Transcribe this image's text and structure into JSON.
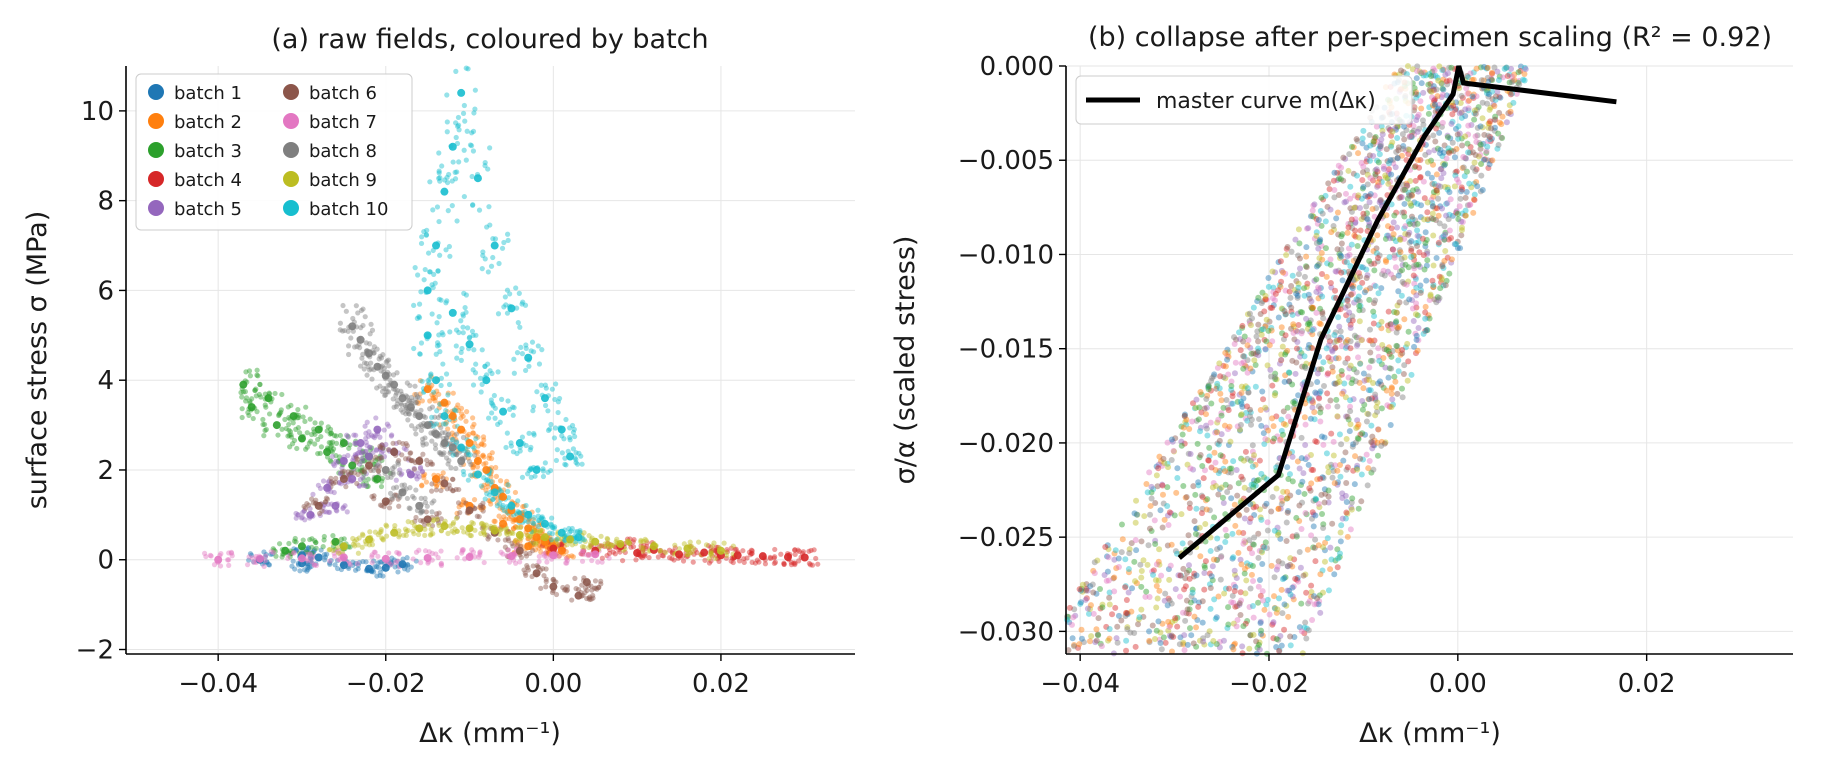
{
  "chart_data": [
    {
      "type": "scatter",
      "title": "(a) raw fields, coloured by batch",
      "xlabel": "Δκ  (mm⁻¹)",
      "ylabel": "surface stress  σ  (MPa)",
      "xlim": [
        -0.051,
        0.036
      ],
      "ylim": [
        -2.1,
        11.0
      ],
      "xticks": [
        -0.04,
        -0.02,
        0.0,
        0.02
      ],
      "xtick_labels": [
        "−0.04",
        "−0.02",
        "0.00",
        "0.02"
      ],
      "yticks": [
        -2,
        0,
        2,
        4,
        6,
        8,
        10
      ],
      "ytick_labels": [
        "−2",
        "0",
        "2",
        "4",
        "6",
        "8",
        "10"
      ],
      "grid": true,
      "legend_position": "top-left",
      "series": [
        {
          "name": "batch 1",
          "color": "#1f77b4",
          "points": [
            [
              -0.035,
              0.0
            ],
            [
              -0.03,
              -0.08
            ],
            [
              -0.025,
              -0.12
            ],
            [
              -0.02,
              -0.18
            ],
            [
              -0.018,
              -0.1
            ],
            [
              -0.028,
              0.05
            ],
            [
              -0.022,
              -0.2
            ],
            [
              -0.03,
              0.1
            ]
          ]
        },
        {
          "name": "batch 2",
          "color": "#ff7f0e",
          "points": [
            [
              -0.015,
              3.8
            ],
            [
              -0.012,
              3.2
            ],
            [
              -0.01,
              2.6
            ],
            [
              -0.008,
              2.0
            ],
            [
              -0.006,
              1.4
            ],
            [
              -0.004,
              0.9
            ],
            [
              -0.002,
              0.5
            ],
            [
              0.0,
              0.3
            ],
            [
              -0.013,
              3.5
            ],
            [
              -0.011,
              2.9
            ],
            [
              -0.009,
              2.2
            ],
            [
              -0.007,
              1.6
            ],
            [
              -0.005,
              1.1
            ],
            [
              -0.003,
              0.7
            ],
            [
              -0.001,
              0.4
            ],
            [
              0.001,
              0.2
            ],
            [
              -0.014,
              1.8
            ],
            [
              -0.01,
              1.2
            ],
            [
              -0.006,
              0.8
            ],
            [
              -0.003,
              0.3
            ]
          ]
        },
        {
          "name": "batch 3",
          "color": "#2ca02c",
          "points": [
            [
              -0.037,
              3.9
            ],
            [
              -0.034,
              3.6
            ],
            [
              -0.031,
              3.2
            ],
            [
              -0.028,
              2.9
            ],
            [
              -0.025,
              2.6
            ],
            [
              -0.022,
              2.3
            ],
            [
              -0.036,
              3.4
            ],
            [
              -0.033,
              3.0
            ],
            [
              -0.03,
              2.7
            ],
            [
              -0.027,
              2.4
            ],
            [
              -0.024,
              2.1
            ],
            [
              -0.021,
              1.8
            ],
            [
              -0.03,
              0.3
            ],
            [
              -0.032,
              0.2
            ],
            [
              -0.026,
              0.4
            ]
          ]
        },
        {
          "name": "batch 4",
          "color": "#d62728",
          "points": [
            [
              0.0,
              0.25
            ],
            [
              0.005,
              0.2
            ],
            [
              0.01,
              0.15
            ],
            [
              0.015,
              0.12
            ],
            [
              0.02,
              0.1
            ],
            [
              0.025,
              0.08
            ],
            [
              0.03,
              0.05
            ],
            [
              0.008,
              0.3
            ],
            [
              0.012,
              0.22
            ],
            [
              0.018,
              0.16
            ],
            [
              0.022,
              0.1
            ],
            [
              0.028,
              0.06
            ]
          ]
        },
        {
          "name": "batch 5",
          "color": "#9467bd",
          "points": [
            [
              -0.029,
              1.0
            ],
            [
              -0.027,
              1.6
            ],
            [
              -0.025,
              2.2
            ],
            [
              -0.023,
              2.6
            ],
            [
              -0.021,
              2.9
            ],
            [
              -0.019,
              2.4
            ],
            [
              -0.017,
              1.9
            ],
            [
              -0.026,
              1.2
            ],
            [
              -0.024,
              1.8
            ],
            [
              -0.022,
              2.3
            ]
          ]
        },
        {
          "name": "batch 6",
          "color": "#8c564b",
          "points": [
            [
              -0.028,
              1.2
            ],
            [
              -0.025,
              1.8
            ],
            [
              -0.022,
              2.1
            ],
            [
              -0.019,
              2.4
            ],
            [
              -0.016,
              2.2
            ],
            [
              -0.013,
              1.7
            ],
            [
              -0.01,
              1.1
            ],
            [
              -0.007,
              0.6
            ],
            [
              -0.004,
              0.2
            ],
            [
              -0.002,
              -0.3
            ],
            [
              0.0,
              -0.6
            ],
            [
              0.003,
              -0.8
            ],
            [
              0.004,
              -0.5
            ],
            [
              -0.02,
              1.3
            ],
            [
              -0.015,
              0.9
            ]
          ]
        },
        {
          "name": "batch 7",
          "color": "#e377c2",
          "points": [
            [
              -0.04,
              0.0
            ],
            [
              -0.035,
              0.02
            ],
            [
              -0.03,
              0.03
            ],
            [
              -0.025,
              0.05
            ],
            [
              -0.02,
              0.02
            ],
            [
              -0.015,
              0.04
            ],
            [
              -0.01,
              0.06
            ],
            [
              -0.005,
              0.08
            ],
            [
              0.0,
              0.1
            ],
            [
              0.005,
              0.12
            ]
          ]
        },
        {
          "name": "batch 8",
          "color": "#7f7f7f",
          "points": [
            [
              -0.024,
              5.2
            ],
            [
              -0.022,
              4.6
            ],
            [
              -0.02,
              4.1
            ],
            [
              -0.018,
              3.6
            ],
            [
              -0.016,
              3.2
            ],
            [
              -0.014,
              2.8
            ],
            [
              -0.012,
              2.5
            ],
            [
              -0.023,
              4.9
            ],
            [
              -0.021,
              4.3
            ],
            [
              -0.019,
              3.9
            ],
            [
              -0.017,
              3.4
            ],
            [
              -0.015,
              3.0
            ],
            [
              -0.013,
              2.6
            ],
            [
              -0.011,
              2.2
            ],
            [
              -0.02,
              2.0
            ],
            [
              -0.018,
              1.5
            ],
            [
              -0.016,
              1.2
            ]
          ]
        },
        {
          "name": "batch 9",
          "color": "#bcbd22",
          "points": [
            [
              -0.025,
              0.3
            ],
            [
              -0.022,
              0.45
            ],
            [
              -0.019,
              0.6
            ],
            [
              -0.016,
              0.7
            ],
            [
              -0.013,
              0.75
            ],
            [
              -0.01,
              0.7
            ],
            [
              -0.007,
              0.65
            ],
            [
              -0.004,
              0.55
            ],
            [
              -0.001,
              0.5
            ],
            [
              0.002,
              0.45
            ],
            [
              0.005,
              0.4
            ],
            [
              0.008,
              0.35
            ],
            [
              0.012,
              0.3
            ],
            [
              0.016,
              0.25
            ],
            [
              0.02,
              0.2
            ]
          ]
        },
        {
          "name": "batch 10",
          "color": "#17becf",
          "points": [
            [
              -0.011,
              10.4
            ],
            [
              -0.012,
              9.2
            ],
            [
              -0.013,
              8.2
            ],
            [
              -0.014,
              7.0
            ],
            [
              -0.015,
              6.0
            ],
            [
              -0.015,
              5.0
            ],
            [
              -0.014,
              4.0
            ],
            [
              -0.013,
              3.2
            ],
            [
              -0.011,
              2.5
            ],
            [
              -0.009,
              1.9
            ],
            [
              -0.007,
              1.5
            ],
            [
              -0.005,
              1.2
            ],
            [
              -0.003,
              1.0
            ],
            [
              -0.001,
              0.8
            ],
            [
              0.001,
              0.6
            ],
            [
              0.003,
              0.5
            ],
            [
              -0.009,
              8.5
            ],
            [
              -0.007,
              7.0
            ],
            [
              -0.005,
              5.6
            ],
            [
              -0.003,
              4.5
            ],
            [
              -0.001,
              3.6
            ],
            [
              0.001,
              2.9
            ],
            [
              0.002,
              2.3
            ],
            [
              -0.012,
              5.5
            ],
            [
              -0.01,
              4.8
            ],
            [
              -0.008,
              4.0
            ],
            [
              -0.006,
              3.3
            ],
            [
              -0.004,
              2.6
            ],
            [
              -0.002,
              2.0
            ]
          ]
        }
      ]
    },
    {
      "type": "scatter",
      "title": "(b) collapse after per-specimen scaling (R² = 0.92)",
      "xlabel": "Δκ  (mm⁻¹)",
      "ylabel": "σ/α  (scaled stress)",
      "xlim": [
        -0.0415,
        0.0355
      ],
      "ylim": [
        -0.0312,
        0.0
      ],
      "xticks": [
        -0.04,
        -0.02,
        0.0,
        0.02
      ],
      "xtick_labels": [
        "−0.04",
        "−0.02",
        "0.00",
        "0.02"
      ],
      "yticks": [
        0.0,
        -0.005,
        -0.01,
        -0.015,
        -0.02,
        -0.025,
        -0.03
      ],
      "ytick_labels": [
        "0.000",
        "−0.005",
        "−0.010",
        "−0.015",
        "−0.020",
        "−0.025",
        "−0.030"
      ],
      "grid": true,
      "legend_position": "top-left",
      "series": [
        {
          "name": "master curve m(Δκ)",
          "type": "line",
          "color": "#000000",
          "x": [
            -0.0295,
            -0.019,
            -0.0145,
            -0.0085,
            -0.0035,
            -0.0005,
            0.0001,
            0.0006,
            0.0168
          ],
          "y": [
            -0.0261,
            -0.0217,
            -0.0145,
            -0.0082,
            -0.0037,
            -0.0015,
            0.0,
            -0.0009,
            -0.0019
          ]
        }
      ]
    }
  ]
}
